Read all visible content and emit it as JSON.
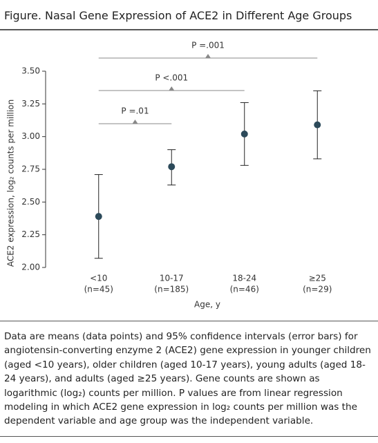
{
  "chart_data": {
    "type": "errorbar",
    "title": "Figure. Nasal Gene Expression of ACE2 in Different Age Groups",
    "xlabel": "Age, y",
    "ylabel": "ACE2 expression, log₂ counts per million",
    "categories": [
      "<10",
      "10-17",
      "18-24",
      "≥25"
    ],
    "category_counts": [
      "(n=45)",
      "(n=185)",
      "(n=46)",
      "(n=29)"
    ],
    "values": [
      2.39,
      2.77,
      3.02,
      3.09
    ],
    "lower": [
      2.07,
      2.63,
      2.78,
      2.83
    ],
    "upper": [
      2.71,
      2.9,
      3.26,
      3.35
    ],
    "color": "#2c4a5a",
    "ylim": [
      2.0,
      3.5
    ],
    "yticks": [
      {
        "value": 2.0,
        "label": "2.00"
      },
      {
        "value": 2.25,
        "label": "2.25"
      },
      {
        "value": 2.5,
        "label": "2.50"
      },
      {
        "value": 2.75,
        "label": "2.75"
      },
      {
        "value": 3.0,
        "label": "3.00"
      },
      {
        "value": 3.25,
        "label": "3.25"
      },
      {
        "value": 3.5,
        "label": "3.50"
      }
    ],
    "grid": false,
    "annotations": [
      "P =.01",
      "P <.001",
      "P =.001"
    ],
    "caption": "Data are means (data points) and 95% confidence intervals (error bars) for angiotensin-converting enzyme 2 (ACE2) gene expression in younger children (aged <10 years), older children (aged 10-17 years), young adults (aged 18-24 years), and adults (aged ≥25 years). Gene counts are shown as logarithmic (log₂) counts per million. P values are from linear regression modeling in which ACE2 gene expression in log₂ counts per million was the dependent variable and age group was the independent variable."
  }
}
